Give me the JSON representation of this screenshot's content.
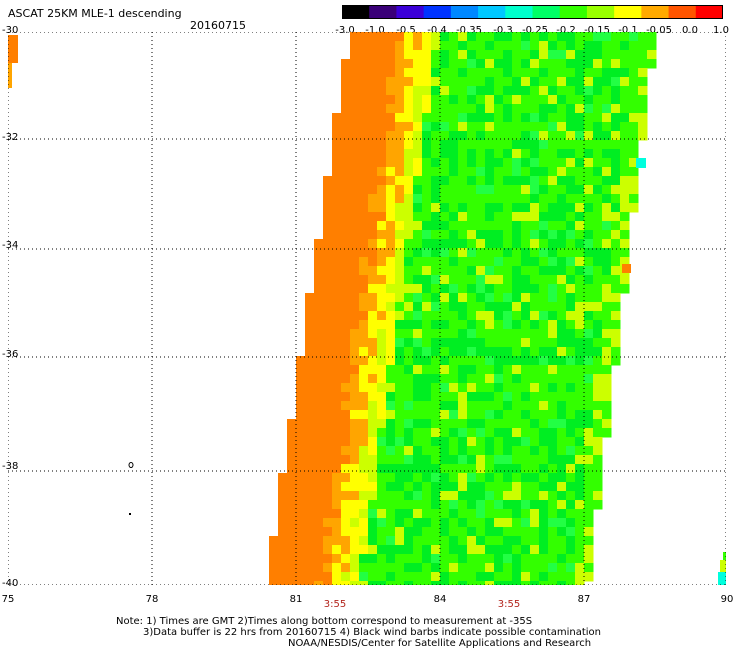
{
  "header": {
    "title": "ASCAT 25KM MLE-1 descending",
    "date": "20160715"
  },
  "colorbar": {
    "ticks": [
      "-3.0",
      "-1.0",
      "-0.5",
      "-0.4",
      "-0.35",
      "-0.3",
      "-0.25",
      "-0.2",
      "-0.15",
      "-0.1",
      "-0.05",
      "0.0",
      "1.0"
    ],
    "colors": [
      "#000000",
      "#3a0078",
      "#3b00d8",
      "#0033ff",
      "#0088ff",
      "#00c8ff",
      "#00ffcc",
      "#00ff66",
      "#33ff00",
      "#99ff00",
      "#ffff00",
      "#ffaa00",
      "#ff5500",
      "#ff0000"
    ]
  },
  "map": {
    "lat_labels": [
      "-30",
      "-32",
      "-34",
      "-36",
      "-38",
      "-40"
    ],
    "lon_labels": [
      "75",
      "78",
      "81",
      "84",
      "87",
      "90"
    ],
    "time_labels": [
      "3:55",
      "3:55"
    ],
    "colors": {
      "orange": "#ff7f00",
      "light_orange": "#ffa500",
      "yellow": "#ffff00",
      "yellow_green": "#ccff00",
      "green": "#33ff00",
      "green2": "#00ee22",
      "cyan": "#00ffdd"
    }
  },
  "footer": {
    "line1": "Note: 1) Times are GMT 2)Times along bottom correspond to measurement at -35S",
    "line2": "3)Data buffer is 22 hrs from 20160715 4) Black wind barbs indicate possible contamination",
    "line3": "NOAA/NESDIS/Center for Satellite Applications and Research"
  }
}
